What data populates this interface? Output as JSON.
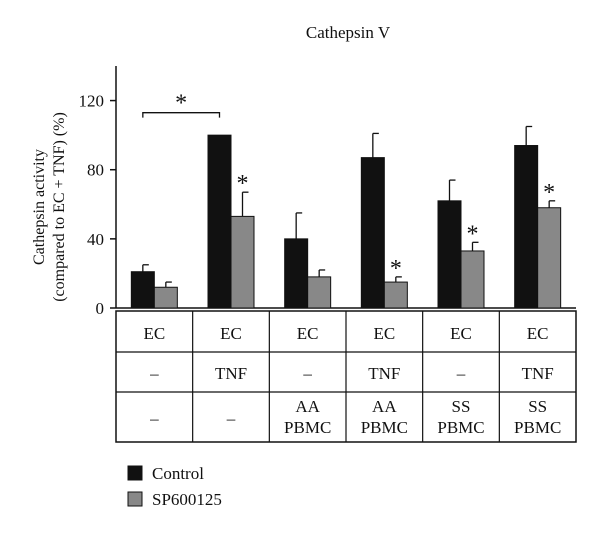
{
  "chart_data": {
    "type": "bar",
    "title": "Cathepsin V",
    "ylabel_line1": "Cathepsin activity",
    "ylabel_line2": "(compared to EC + TNF) (%)",
    "ylim": [
      0,
      140
    ],
    "yticks": [
      0,
      40,
      80,
      120
    ],
    "yticks_text": [
      "0",
      "40",
      "80",
      "120"
    ],
    "grid": false,
    "categories": [
      {
        "row1": "EC",
        "row2": "–",
        "row3": [
          "–"
        ]
      },
      {
        "row1": "EC",
        "row2": "TNF",
        "row3": [
          "–"
        ]
      },
      {
        "row1": "EC",
        "row2": "–",
        "row3": [
          "AA",
          "PBMC"
        ]
      },
      {
        "row1": "EC",
        "row2": "TNF",
        "row3": [
          "AA",
          "PBMC"
        ]
      },
      {
        "row1": "EC",
        "row2": "–",
        "row3": [
          "SS",
          "PBMC"
        ]
      },
      {
        "row1": "EC",
        "row2": "TNF",
        "row3": [
          "SS",
          "PBMC"
        ]
      }
    ],
    "series": [
      {
        "name": "Control",
        "color": "#111111",
        "values": [
          21,
          100,
          40,
          87,
          62,
          94
        ],
        "errors": [
          4,
          0,
          15,
          14,
          12,
          11
        ]
      },
      {
        "name": "SP600125",
        "color": "#888888",
        "values": [
          12,
          53,
          18,
          15,
          33,
          58
        ],
        "errors": [
          3,
          14,
          4,
          3,
          5,
          4
        ]
      }
    ],
    "significance": {
      "marker": "*",
      "series": "SP600125",
      "group_indices": [
        1,
        3,
        4,
        5
      ],
      "bracket": {
        "from_group": 0,
        "to_group": 1,
        "y": 113,
        "label": "*"
      }
    },
    "legend_position": "bottom-left"
  }
}
